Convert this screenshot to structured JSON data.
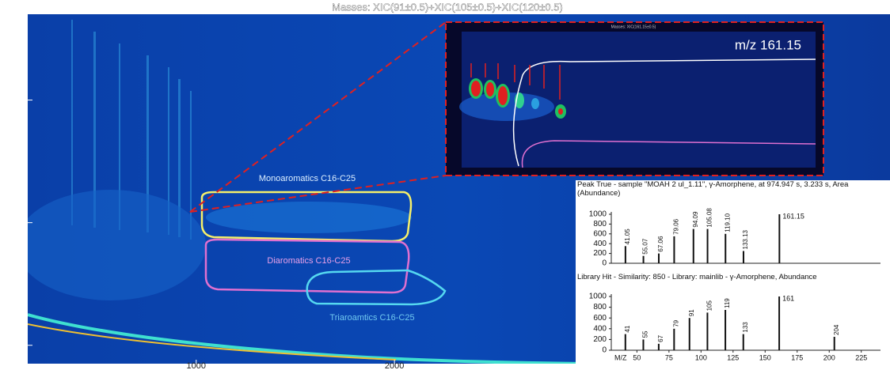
{
  "chart_data": [
    {
      "type": "contour",
      "title": "Masses:  XIC(91±0.5)+XIC(105±0.5)+XIC(120±0.5)",
      "xlim": [
        150,
        4500
      ],
      "ylim": [
        0.7,
        6.4
      ],
      "xticks": [
        1000,
        2000
      ],
      "yticks": [
        1,
        3,
        5
      ],
      "annotations": [
        "Monoaromatics C16-C25",
        "Diaromatics C16-C25",
        "Triaroamtics C16-C25"
      ]
    },
    {
      "type": "bar",
      "title": "Peak True - sample \"MOAH 2 ul_1.11\", γ-Amorphene, at 974.947 s, 3.233 s, Area (Abundance)",
      "x": [
        41.05,
        55.07,
        67.06,
        79.06,
        94.09,
        105.08,
        119.1,
        133.13,
        161.15
      ],
      "values": [
        350,
        150,
        200,
        550,
        700,
        700,
        600,
        250,
        1000
      ],
      "value_labels": [
        "41.05",
        "55.07",
        "67.06",
        "79.06",
        "94.09",
        "105.08",
        "119.10",
        "133.13",
        "161.15"
      ],
      "color": "#111111",
      "xlim": [
        30,
        240
      ],
      "ylim": [
        0,
        1000
      ],
      "yticks": [
        0,
        200,
        400,
        600,
        800,
        1000
      ]
    },
    {
      "type": "bar",
      "title": "Library Hit - Similarity: 850 - Library: mainlib - γ-Amorphene, Abundance",
      "x": [
        41,
        55,
        67,
        79,
        91,
        105,
        119,
        133,
        161,
        204
      ],
      "values": [
        300,
        200,
        120,
        400,
        600,
        700,
        750,
        300,
        1000,
        250
      ],
      "color": "#111111",
      "xlabel": "M/Z",
      "xlim": [
        30,
        240
      ],
      "ylim": [
        0,
        1000
      ],
      "yticks": [
        0,
        200,
        400,
        600,
        800,
        1000
      ],
      "xticks": [
        50,
        75,
        100,
        125,
        150,
        175,
        200,
        225
      ]
    }
  ],
  "inset": {
    "title": "Masses: XIC(161.15±0.5)",
    "label": "m/z 161.15"
  }
}
